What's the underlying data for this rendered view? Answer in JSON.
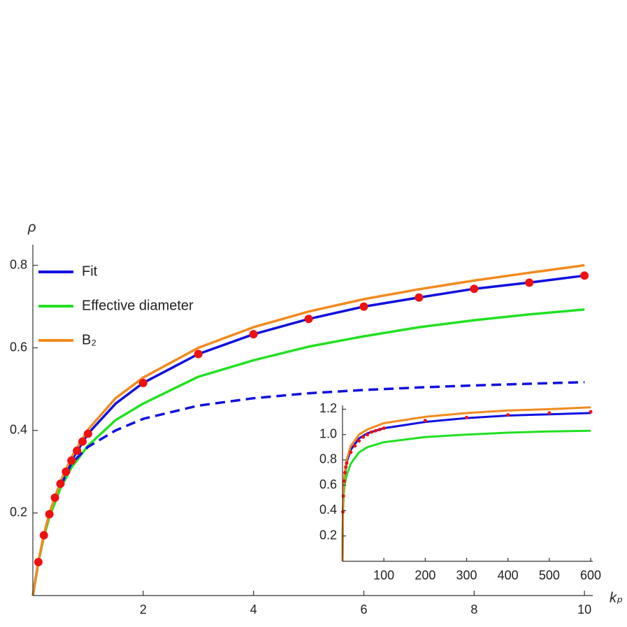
{
  "chart_data": [
    {
      "type": "line",
      "xlabel": "kₚ",
      "ylabel": "ρ",
      "xlim": [
        0,
        10.15
      ],
      "ylim": [
        0,
        0.85
      ],
      "xticks": [
        2,
        4,
        6,
        8,
        10
      ],
      "yticks": [
        0.2,
        0.4,
        0.6,
        0.8
      ],
      "legend": "upper left",
      "series": [
        {
          "name": "Fit",
          "color": "#1010e0",
          "style": "solid",
          "x": [
            0,
            0.1,
            0.2,
            0.3,
            0.5,
            0.7,
            1,
            1.5,
            2,
            3,
            4,
            5,
            6,
            7,
            8,
            9,
            10
          ],
          "values": [
            0,
            0.081,
            0.146,
            0.197,
            0.271,
            0.327,
            0.392,
            0.465,
            0.515,
            0.585,
            0.633,
            0.67,
            0.7,
            0.722,
            0.743,
            0.758,
            0.775
          ]
        },
        {
          "name": "Effective diameter",
          "color": "#22e022",
          "style": "solid",
          "x": [
            0,
            0.1,
            0.2,
            0.3,
            0.5,
            0.7,
            1,
            1.5,
            2,
            3,
            4,
            5,
            6,
            7,
            8,
            9,
            10
          ],
          "values": [
            0,
            0.08,
            0.143,
            0.19,
            0.26,
            0.31,
            0.363,
            0.425,
            0.465,
            0.53,
            0.57,
            0.603,
            0.628,
            0.65,
            0.667,
            0.681,
            0.693
          ]
        },
        {
          "name": "B₂",
          "color": "#f28a1e",
          "style": "solid",
          "x": [
            0,
            0.1,
            0.2,
            0.3,
            0.5,
            0.7,
            1,
            1.5,
            2,
            3,
            4,
            5,
            6,
            7,
            8,
            9,
            10
          ],
          "values": [
            0,
            0.082,
            0.148,
            0.2,
            0.276,
            0.335,
            0.402,
            0.478,
            0.528,
            0.6,
            0.65,
            0.688,
            0.718,
            0.742,
            0.763,
            0.782,
            0.8
          ]
        },
        {
          "color": "#1010e0",
          "style": "dashed",
          "x": [
            0.5,
            0.7,
            1,
            1.5,
            2,
            3,
            4,
            5,
            6,
            7,
            8,
            9,
            10
          ],
          "values": [
            0.265,
            0.32,
            0.36,
            0.4,
            0.428,
            0.46,
            0.478,
            0.49,
            0.498,
            0.504,
            0.509,
            0.513,
            0.517
          ]
        },
        {
          "color": "#ee1111",
          "style": "points",
          "x": [
            0.1,
            0.2,
            0.3,
            0.4,
            0.5,
            0.6,
            0.7,
            0.8,
            0.9,
            1,
            2,
            3,
            4,
            5,
            6,
            7,
            8,
            9,
            10
          ],
          "values": [
            0.081,
            0.146,
            0.197,
            0.237,
            0.271,
            0.3,
            0.327,
            0.351,
            0.373,
            0.392,
            0.515,
            0.585,
            0.633,
            0.67,
            0.7,
            0.722,
            0.743,
            0.758,
            0.775
          ]
        }
      ]
    },
    {
      "type": "line",
      "xlim": [
        0,
        605
      ],
      "ylim": [
        0,
        1.23
      ],
      "xticks": [
        100,
        200,
        300,
        400,
        500,
        600
      ],
      "yticks": [
        0.2,
        0.4,
        0.6,
        0.8,
        {
          "value": 1,
          "label": "1.0"
        },
        1.2
      ],
      "series": [
        {
          "color": "#1010e0",
          "style": "solid",
          "x": [
            0,
            1,
            3,
            5,
            10,
            20,
            40,
            60,
            100,
            200,
            300,
            400,
            500,
            600
          ],
          "values": [
            0,
            0.39,
            0.6,
            0.67,
            0.78,
            0.88,
            0.97,
            1.01,
            1.05,
            1.1,
            1.13,
            1.15,
            1.16,
            1.17
          ]
        },
        {
          "color": "#22e022",
          "style": "solid",
          "x": [
            0,
            1,
            3,
            5,
            10,
            20,
            40,
            60,
            100,
            200,
            300,
            400,
            500,
            600
          ],
          "values": [
            0,
            0.36,
            0.53,
            0.6,
            0.68,
            0.77,
            0.86,
            0.9,
            0.94,
            0.98,
            1.0,
            1.015,
            1.025,
            1.03
          ]
        },
        {
          "color": "#f28a1e",
          "style": "solid",
          "x": [
            0,
            1,
            3,
            5,
            10,
            20,
            40,
            60,
            100,
            200,
            300,
            400,
            500,
            600
          ],
          "values": [
            0,
            0.4,
            0.62,
            0.69,
            0.8,
            0.91,
            1.0,
            1.04,
            1.09,
            1.14,
            1.17,
            1.19,
            1.2,
            1.215
          ]
        },
        {
          "color": "#ee1111",
          "style": "points",
          "x": [
            1,
            2,
            4,
            6,
            8,
            10,
            20,
            30,
            40,
            50,
            60,
            70,
            80,
            90,
            100,
            200,
            300,
            400,
            500,
            600
          ],
          "values": [
            0.39,
            0.515,
            0.633,
            0.7,
            0.743,
            0.775,
            0.86,
            0.91,
            0.95,
            0.98,
            1.0,
            1.02,
            1.03,
            1.04,
            1.05,
            1.11,
            1.135,
            1.155,
            1.17,
            1.18
          ]
        }
      ]
    }
  ]
}
